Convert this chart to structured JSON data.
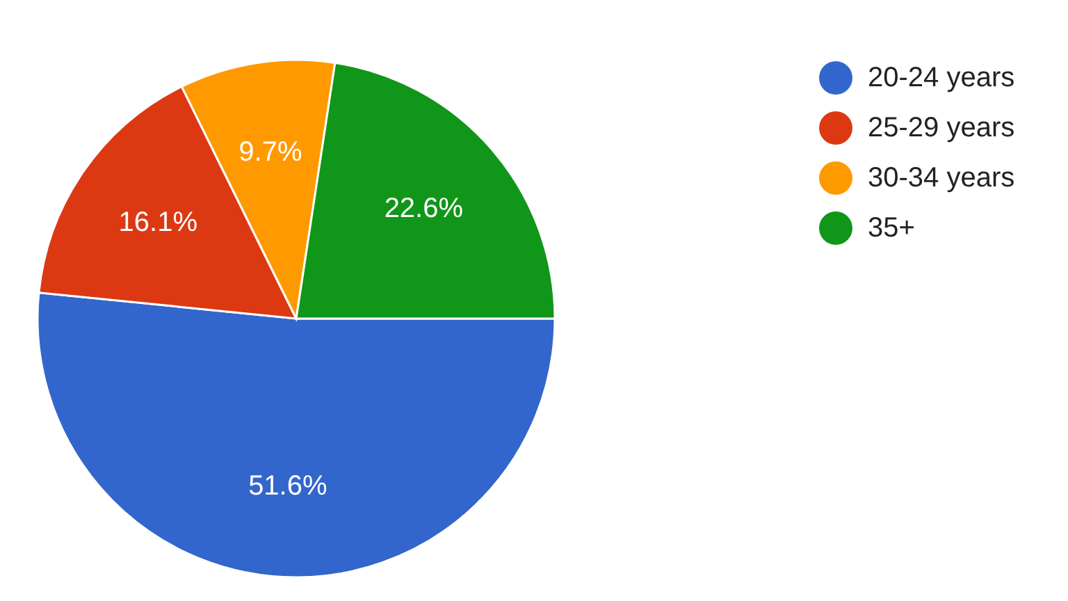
{
  "chart_data": {
    "type": "pie",
    "categories": [
      "20-24 years",
      "25-29 years",
      "30-34 years",
      "35+"
    ],
    "values": [
      51.6,
      16.1,
      9.7,
      22.6
    ],
    "colors": [
      "#3366cc",
      "#dc3912",
      "#ff9900",
      "#109618"
    ],
    "value_labels": [
      "51.6%",
      "16.1%",
      "9.7%",
      "22.6%"
    ],
    "legend": "top right"
  }
}
